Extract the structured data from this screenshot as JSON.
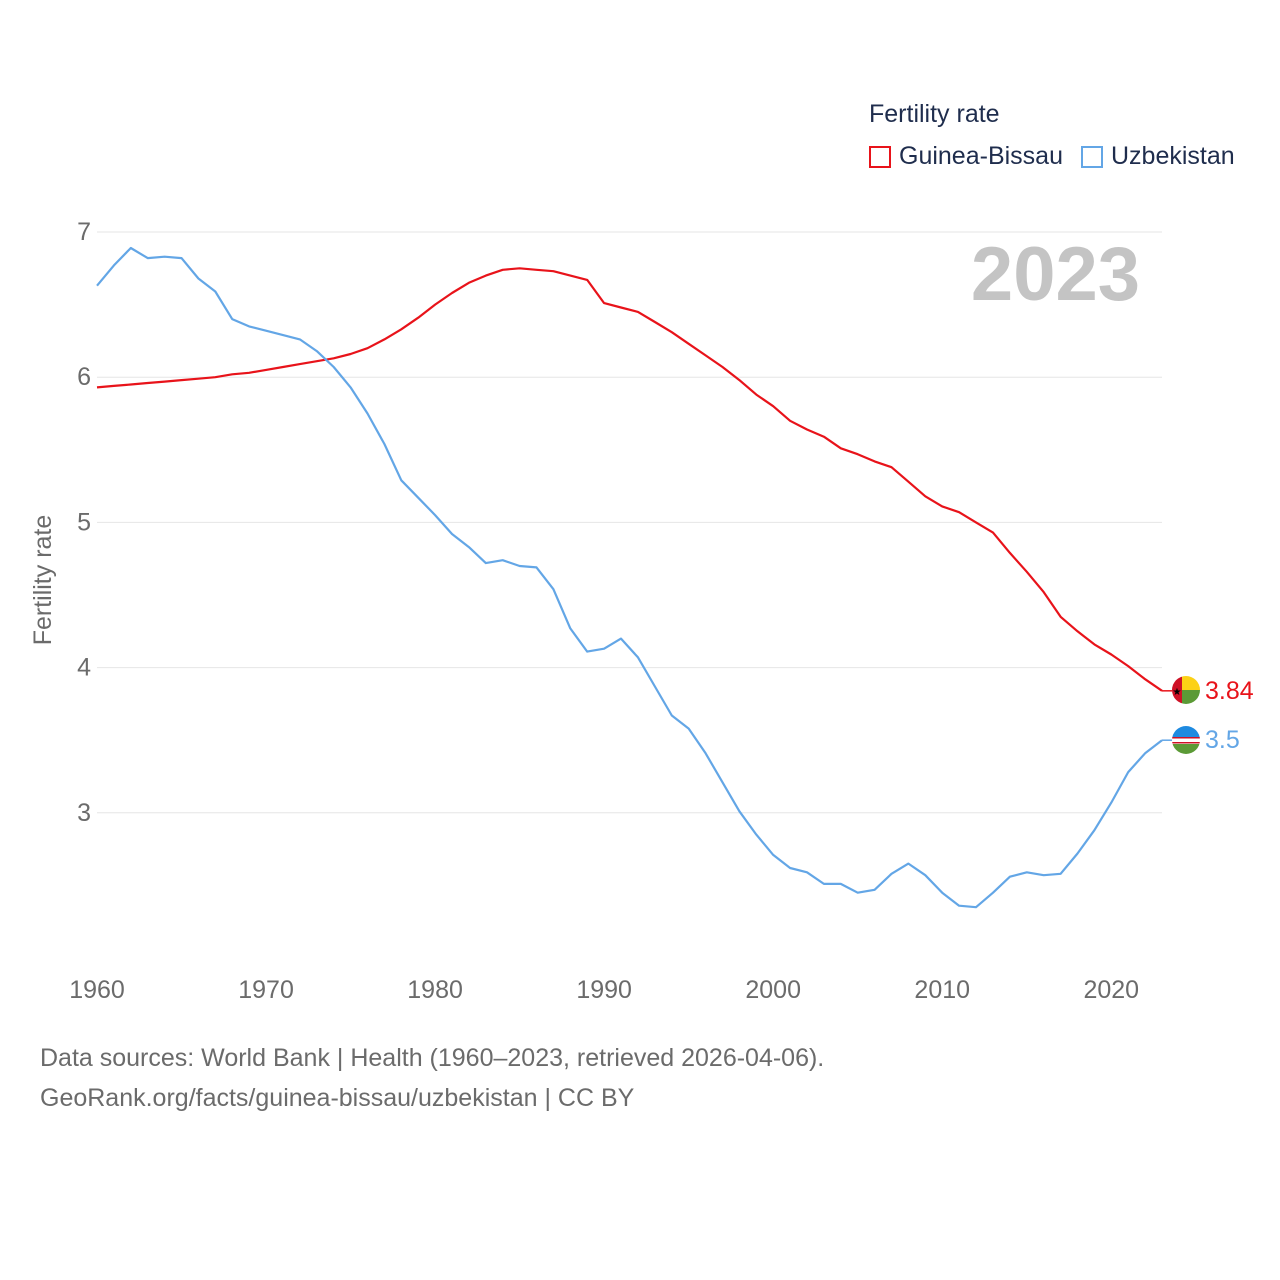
{
  "legend": {
    "title": "Fertility rate",
    "items": [
      {
        "label": "Guinea-Bissau",
        "color": "#e8131a"
      },
      {
        "label": "Uzbekistan",
        "color": "#63a6e6"
      }
    ]
  },
  "year_label": "2023",
  "footer": {
    "line1": "Data sources: World Bank | Health (1960–2023, retrieved 2026-04-06).",
    "line2": "GeoRank.org/facts/guinea-bissau/uzbekistan | CC BY"
  },
  "chart_data": {
    "type": "line",
    "title": "",
    "xlabel": "",
    "ylabel": "Fertility rate",
    "xlim": [
      1960,
      2023
    ],
    "ylim": [
      2,
      7
    ],
    "xticks": [
      1960,
      1970,
      1980,
      1990,
      2000,
      2010,
      2020
    ],
    "yticks": [
      3,
      4,
      5,
      6,
      7
    ],
    "grid": true,
    "x": [
      1960,
      1961,
      1962,
      1963,
      1964,
      1965,
      1966,
      1967,
      1968,
      1969,
      1970,
      1971,
      1972,
      1973,
      1974,
      1975,
      1976,
      1977,
      1978,
      1979,
      1980,
      1981,
      1982,
      1983,
      1984,
      1985,
      1986,
      1987,
      1988,
      1989,
      1990,
      1991,
      1992,
      1993,
      1994,
      1995,
      1996,
      1997,
      1998,
      1999,
      2000,
      2001,
      2002,
      2003,
      2004,
      2005,
      2006,
      2007,
      2008,
      2009,
      2010,
      2011,
      2012,
      2013,
      2014,
      2015,
      2016,
      2017,
      2018,
      2019,
      2020,
      2021,
      2022,
      2023
    ],
    "series": [
      {
        "name": "Guinea-Bissau",
        "color": "#e8131a",
        "end_label": "3.84",
        "values": [
          5.93,
          5.94,
          5.95,
          5.96,
          5.97,
          5.98,
          5.99,
          6.0,
          6.02,
          6.03,
          6.05,
          6.07,
          6.09,
          6.11,
          6.13,
          6.16,
          6.2,
          6.26,
          6.33,
          6.41,
          6.5,
          6.58,
          6.65,
          6.7,
          6.74,
          6.75,
          6.74,
          6.73,
          6.7,
          6.67,
          6.51,
          6.48,
          6.45,
          6.38,
          6.31,
          6.23,
          6.15,
          6.07,
          5.98,
          5.88,
          5.8,
          5.7,
          5.64,
          5.59,
          5.51,
          5.47,
          5.42,
          5.38,
          5.28,
          5.18,
          5.11,
          5.07,
          5.0,
          4.93,
          4.79,
          4.66,
          4.52,
          4.35,
          4.25,
          4.16,
          4.09,
          4.01,
          3.92,
          3.84
        ]
      },
      {
        "name": "Uzbekistan",
        "color": "#63a6e6",
        "end_label": "3.5",
        "values": [
          6.63,
          6.77,
          6.89,
          6.82,
          6.83,
          6.82,
          6.68,
          6.59,
          6.4,
          6.35,
          6.32,
          6.29,
          6.26,
          6.18,
          6.07,
          5.93,
          5.75,
          5.54,
          5.29,
          5.17,
          5.05,
          4.92,
          4.83,
          4.72,
          4.74,
          4.7,
          4.69,
          4.54,
          4.27,
          4.11,
          4.13,
          4.2,
          4.07,
          3.87,
          3.67,
          3.58,
          3.41,
          3.21,
          3.01,
          2.85,
          2.71,
          2.62,
          2.59,
          2.51,
          2.51,
          2.45,
          2.47,
          2.58,
          2.65,
          2.57,
          2.45,
          2.36,
          2.35,
          2.45,
          2.56,
          2.59,
          2.57,
          2.58,
          2.72,
          2.88,
          3.07,
          3.28,
          3.41,
          3.5
        ]
      }
    ]
  }
}
